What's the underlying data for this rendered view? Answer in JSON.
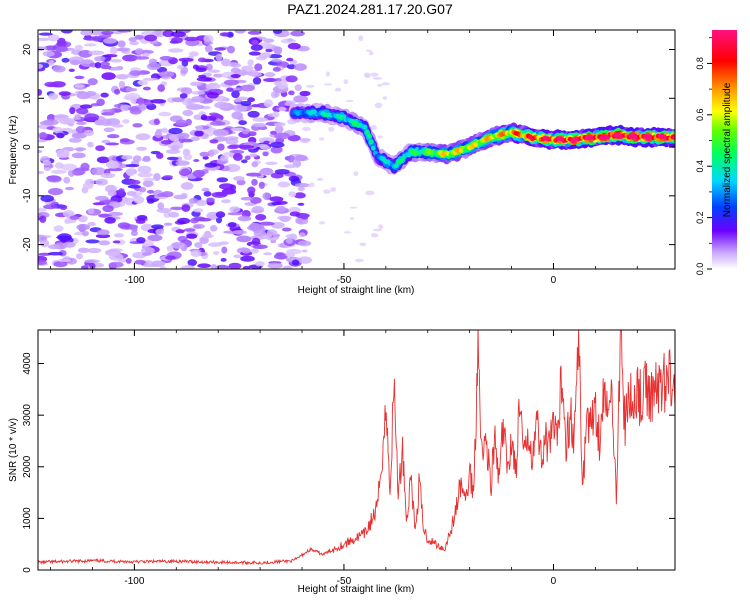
{
  "title": "PAZ1.2024.281.17.20.G07",
  "chart_data": [
    {
      "type": "heatmap",
      "xlabel": "Height of straight line (km)",
      "ylabel": "Frequency (Hz)",
      "xlim": [
        -123,
        29
      ],
      "ylim": [
        -25,
        24
      ],
      "xticks": [
        -100,
        -50,
        0
      ],
      "yticks": [
        -20,
        -10,
        0,
        10,
        20
      ],
      "colorbar": {
        "label": "Normalized spectral amplitude",
        "range": [
          0,
          0.93
        ],
        "ticks": [
          0.0,
          0.2,
          0.4,
          0.6,
          0.8
        ]
      },
      "ridge": {
        "x": [
          -62,
          -55,
          -50,
          -45,
          -42,
          -38,
          -34,
          -30,
          -25,
          -20,
          -15,
          -10,
          -5,
          0,
          5,
          10,
          15,
          20,
          25,
          29
        ],
        "freq": [
          7,
          7,
          6,
          4,
          -2,
          -4,
          -1,
          -1,
          -1.5,
          0,
          2,
          3,
          2,
          1.5,
          1.5,
          2,
          2.5,
          2,
          2,
          2
        ],
        "amplitude": [
          0.25,
          0.35,
          0.35,
          0.4,
          0.3,
          0.35,
          0.4,
          0.45,
          0.6,
          0.55,
          0.6,
          0.65,
          0.75,
          0.8,
          0.85,
          0.85,
          0.9,
          0.85,
          0.85,
          0.85
        ]
      },
      "grid": false
    },
    {
      "type": "line",
      "xlabel": "Height of straight line (km)",
      "ylabel": "SNR (10 * v/v)",
      "xlim": [
        -123,
        29
      ],
      "ylim": [
        0,
        4650
      ],
      "xticks": [
        -100,
        -50,
        0
      ],
      "yticks": [
        0,
        1000,
        2000,
        3000,
        4000
      ],
      "series": [
        {
          "color": "#e83030",
          "x": [
            -123,
            -110,
            -100,
            -90,
            -80,
            -70,
            -62,
            -58,
            -55,
            -50,
            -45,
            -42,
            -40,
            -39,
            -38,
            -37,
            -36,
            -35,
            -34,
            -33,
            -32,
            -31,
            -30,
            -28,
            -26,
            -24,
            -22,
            -21,
            -20,
            -19,
            -18,
            -17,
            -16,
            -15,
            -14,
            -13,
            -12,
            -11,
            -10,
            -9,
            -8,
            -7,
            -6,
            -5,
            -4,
            -3,
            -2,
            -1,
            0,
            1,
            2,
            3,
            4,
            5,
            6,
            7,
            8,
            9,
            10,
            11,
            12,
            13,
            14,
            15,
            16,
            17,
            18,
            19,
            20,
            21,
            22,
            23,
            24,
            25,
            26,
            27,
            28,
            29
          ],
          "y": [
            150,
            180,
            160,
            170,
            150,
            140,
            180,
            400,
            300,
            500,
            700,
            1200,
            3100,
            1600,
            3600,
            1400,
            2400,
            900,
            1900,
            700,
            1700,
            800,
            600,
            500,
            400,
            900,
            1700,
            1300,
            1900,
            1500,
            4600,
            2100,
            2600,
            1600,
            2500,
            1700,
            2800,
            1900,
            2600,
            1900,
            3200,
            2100,
            2700,
            2300,
            2900,
            2200,
            2600,
            2300,
            2800,
            2400,
            3900,
            2500,
            3000,
            2600,
            4400,
            1600,
            3100,
            2700,
            3300,
            2500,
            3500,
            2900,
            3400,
            1500,
            4600,
            2800,
            3400,
            3100,
            3600,
            3200,
            3500,
            3300,
            3600,
            3400,
            3750,
            3650,
            3800,
            3700
          ]
        }
      ],
      "grid": false
    }
  ]
}
